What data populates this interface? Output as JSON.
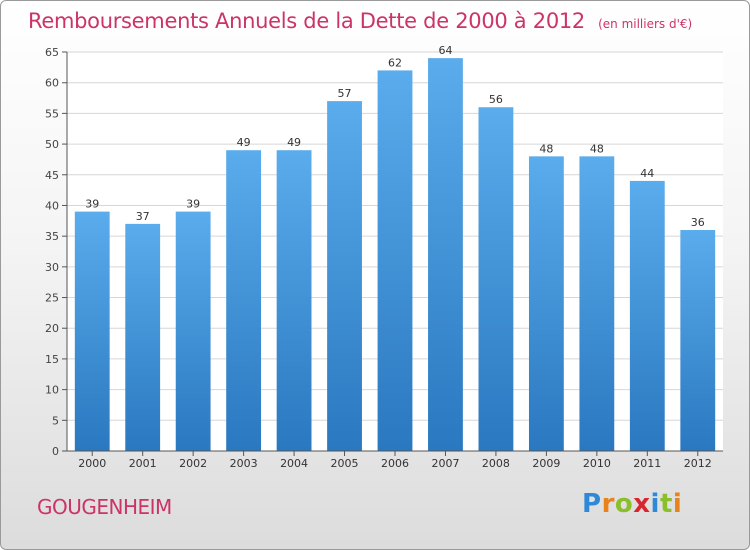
{
  "header": {
    "title": "Remboursements Annuels de la Dette de 2000 à 2012",
    "unit": "(en milliers d'€)"
  },
  "footer": {
    "city": "GOUGENHEIM",
    "brand": "Proxiti",
    "brand_letters": [
      {
        "char": "P",
        "color": "#2e8ad8"
      },
      {
        "char": "r",
        "color": "#e8821a"
      },
      {
        "char": "o",
        "color": "#8bbf2a"
      },
      {
        "char": "x",
        "color": "#d8262e"
      },
      {
        "char": "i",
        "color": "#2e8ad8"
      },
      {
        "char": "t",
        "color": "#8bbf2a"
      },
      {
        "char": "i",
        "color": "#e8821a"
      }
    ]
  },
  "chart_data": {
    "type": "bar",
    "categories": [
      "2000",
      "2001",
      "2002",
      "2003",
      "2004",
      "2005",
      "2006",
      "2007",
      "2008",
      "2009",
      "2010",
      "2011",
      "2012"
    ],
    "values": [
      39,
      37,
      39,
      49,
      49,
      57,
      62,
      64,
      56,
      48,
      48,
      44,
      36
    ],
    "title": "Remboursements Annuels de la Dette de 2000 à 2012",
    "subtitle": "(en milliers d'€)",
    "xlabel": "",
    "ylabel": "",
    "ylim": [
      0,
      65
    ],
    "yticks": [
      0,
      5,
      10,
      15,
      20,
      25,
      30,
      35,
      40,
      45,
      50,
      55,
      60,
      65
    ],
    "grid": true,
    "legend": "none",
    "bar_color_top": "#5aacec",
    "bar_color_bottom": "#2a78c0"
  }
}
